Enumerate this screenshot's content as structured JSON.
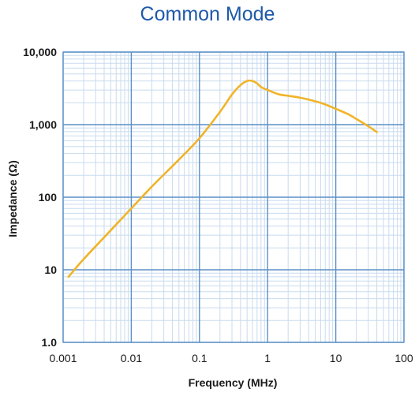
{
  "chart_data": {
    "type": "line",
    "title": "Common Mode",
    "xlabel": "Frequency (MHz)",
    "ylabel": "Impedance (Ω)",
    "x_scale": "log",
    "y_scale": "log",
    "xlim": [
      0.001,
      100
    ],
    "ylim": [
      1,
      10000
    ],
    "x_ticks": [
      {
        "value": 0.001,
        "label": "0.001"
      },
      {
        "value": 0.01,
        "label": "0.01"
      },
      {
        "value": 0.1,
        "label": "0.1"
      },
      {
        "value": 1,
        "label": "1"
      },
      {
        "value": 10,
        "label": "10"
      },
      {
        "value": 100,
        "label": "100"
      }
    ],
    "y_ticks": [
      {
        "value": 1,
        "label": "1.0"
      },
      {
        "value": 10,
        "label": "10"
      },
      {
        "value": 100,
        "label": "100"
      },
      {
        "value": 1000,
        "label": "1,000"
      },
      {
        "value": 10000,
        "label": "10,000"
      }
    ],
    "grid": true,
    "series": [
      {
        "color": "#f0b429",
        "x": [
          0.0012,
          0.002,
          0.005,
          0.01,
          0.02,
          0.05,
          0.1,
          0.2,
          0.3,
          0.4,
          0.5,
          0.6,
          0.7,
          0.8,
          1.0,
          1.2,
          1.5,
          2,
          3,
          5,
          7,
          10,
          15,
          20,
          30,
          40
        ],
        "y": [
          8,
          14,
          35,
          70,
          140,
          330,
          650,
          1500,
          2600,
          3500,
          4000,
          4000,
          3700,
          3300,
          3000,
          2800,
          2600,
          2500,
          2350,
          2100,
          1900,
          1650,
          1400,
          1200,
          950,
          790
        ]
      }
    ],
    "colors": {
      "title": "#1f5aa8",
      "grid_major": "#5b8fc7",
      "grid_minor": "#c9dbef",
      "text": "#1a1a1a"
    }
  }
}
